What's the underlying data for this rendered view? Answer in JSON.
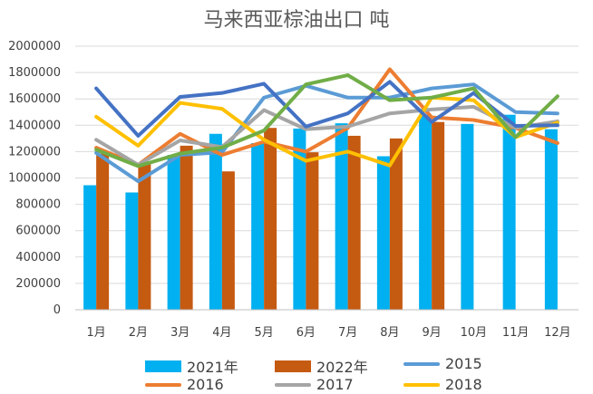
{
  "chart_data": {
    "type": "bar",
    "title": "马来西亚棕油出口  吨",
    "xlabel": "",
    "ylabel": "",
    "ylim": [
      0,
      2000000
    ],
    "yticks": [
      "0",
      "200000",
      "400000",
      "600000",
      "800000",
      "1000000",
      "1200000",
      "1400000",
      "1600000",
      "1800000",
      "2000000"
    ],
    "categories": [
      "1月",
      "2月",
      "3月",
      "4月",
      "5月",
      "6月",
      "7月",
      "8月",
      "9月",
      "10月",
      "11月",
      "12月"
    ],
    "grid": true,
    "legend_position": "bottom",
    "bar_series": [
      {
        "name": "2021年",
        "color": "#00B0F0",
        "values": [
          945000,
          890000,
          1175000,
          1335000,
          1265000,
          1375000,
          1415000,
          1165000,
          1480000,
          1410000,
          1480000,
          1370000
        ]
      },
      {
        "name": "2022年",
        "color": "#C55A11",
        "values": [
          1185000,
          1105000,
          1245000,
          1050000,
          1380000,
          1195000,
          1320000,
          1300000,
          1425000,
          null,
          null,
          null
        ]
      }
    ],
    "line_series": [
      {
        "name": "2015",
        "color": "#5B9BD5",
        "values": [
          1190000,
          975000,
          1175000,
          1195000,
          1610000,
          1700000,
          1610000,
          1610000,
          1680000,
          1710000,
          1500000,
          1490000
        ]
      },
      {
        "name": "2016",
        "color": "#ED7D31",
        "values": [
          1230000,
          1100000,
          1335000,
          1175000,
          1275000,
          1200000,
          1380000,
          1825000,
          1460000,
          1440000,
          1380000,
          1265000
        ]
      },
      {
        "name": "2017",
        "color": "#A5A5A5",
        "values": [
          1290000,
          1100000,
          1285000,
          1235000,
          1515000,
          1370000,
          1390000,
          1490000,
          1520000,
          1540000,
          1380000,
          1430000
        ]
      },
      {
        "name": "2018",
        "color": "#FFC000",
        "values": [
          1465000,
          1245000,
          1570000,
          1525000,
          1290000,
          1130000,
          1200000,
          1095000,
          1610000,
          1590000,
          1310000,
          1420000
        ]
      },
      {
        "name": "",
        "color": "#4472C4",
        "values": [
          1680000,
          1320000,
          1615000,
          1645000,
          1715000,
          1390000,
          1490000,
          1730000,
          1425000,
          1645000,
          1395000,
          1400000
        ]
      },
      {
        "name": "",
        "color": "#70AD47",
        "values": [
          1215000,
          1090000,
          1185000,
          1230000,
          1360000,
          1710000,
          1780000,
          1590000,
          1610000,
          1680000,
          1310000,
          1620000
        ]
      }
    ]
  }
}
